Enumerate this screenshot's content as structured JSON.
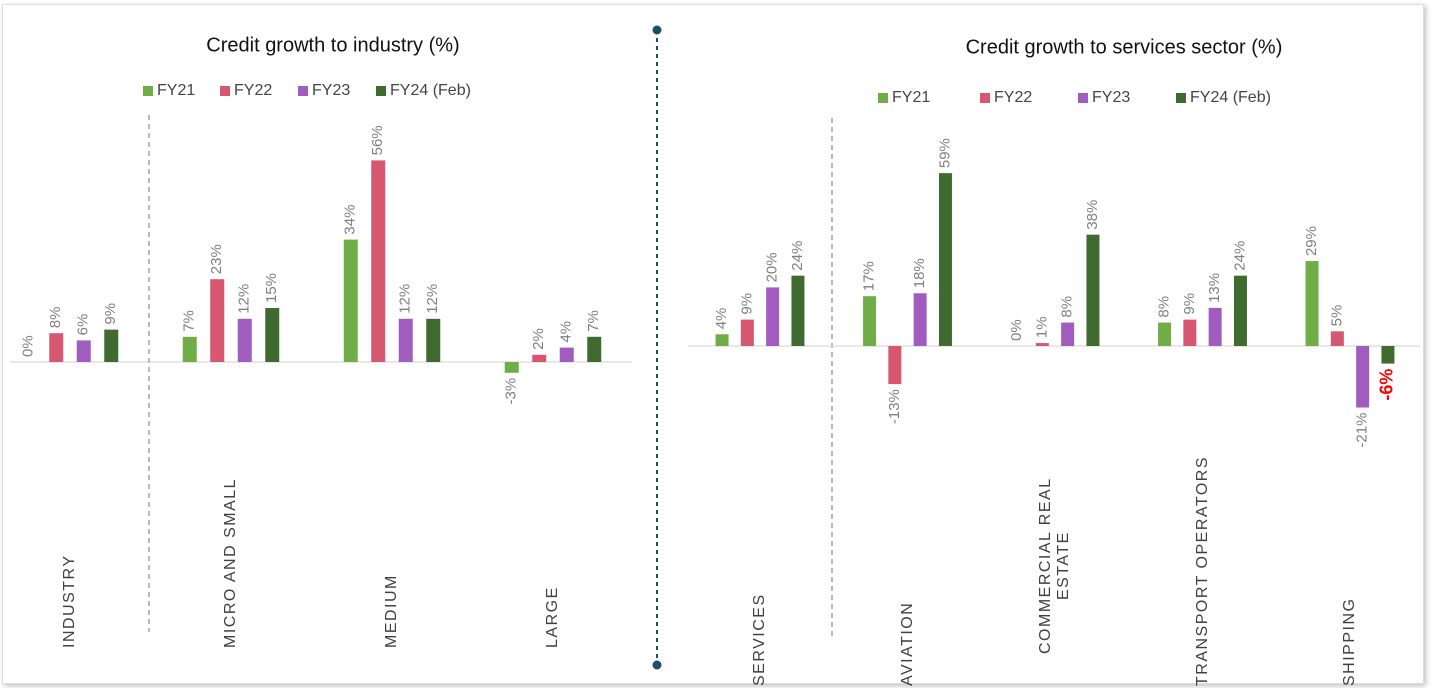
{
  "chart_data": [
    {
      "type": "bar",
      "title": "Credit growth to industry (%)",
      "categories": [
        "INDUSTRY",
        "MICRO AND SMALL",
        "MEDIUM",
        "LARGE"
      ],
      "series": [
        {
          "name": "FY21",
          "color": "#70ad47",
          "values": [
            0,
            7,
            34,
            -3
          ],
          "value_labels": [
            "0%",
            "7%",
            "34%",
            "-3%"
          ]
        },
        {
          "name": "FY22",
          "color": "#d6576f",
          "values": [
            8,
            23,
            56,
            2
          ],
          "value_labels": [
            "8%",
            "23%",
            "56%",
            "2%"
          ]
        },
        {
          "name": "FY23",
          "color": "#a15cbf",
          "values": [
            6,
            12,
            12,
            4
          ],
          "value_labels": [
            "6%",
            "12%",
            "12%",
            "4%"
          ]
        },
        {
          "name": "FY24 (Feb)",
          "color": "#3f6b30",
          "values": [
            9,
            15,
            12,
            7
          ],
          "value_labels": [
            "9%",
            "15%",
            "12%",
            "7%"
          ]
        }
      ]
    },
    {
      "type": "bar",
      "title": "Credit growth to services sector (%)",
      "categories": [
        "SERVICES",
        "AVIATION",
        "COMMERCIAL REAL ESTATE",
        "TRANSPORT OPERATORS",
        "SHIPPING"
      ],
      "series": [
        {
          "name": "FY21",
          "color": "#70ad47",
          "values": [
            4,
            17,
            0,
            8,
            29
          ],
          "value_labels": [
            "4%",
            "17%",
            "0%",
            "8%",
            "29%"
          ]
        },
        {
          "name": "FY22",
          "color": "#d6576f",
          "values": [
            9,
            -13,
            1,
            9,
            5
          ],
          "value_labels": [
            "9%",
            "-13%",
            "1%",
            "9%",
            "5%"
          ]
        },
        {
          "name": "FY23",
          "color": "#a15cbf",
          "values": [
            20,
            18,
            8,
            13,
            -21
          ],
          "value_labels": [
            "20%",
            "18%",
            "8%",
            "13%",
            "-21%"
          ]
        },
        {
          "name": "FY24 (Feb)",
          "color": "#3f6b30",
          "values": [
            24,
            59,
            38,
            24,
            -6
          ],
          "value_labels": [
            "24%",
            "59%",
            "38%",
            "24%",
            "-6%"
          ],
          "value_label_colors": [
            null,
            null,
            null,
            null,
            "#ff0000"
          ]
        }
      ]
    }
  ]
}
